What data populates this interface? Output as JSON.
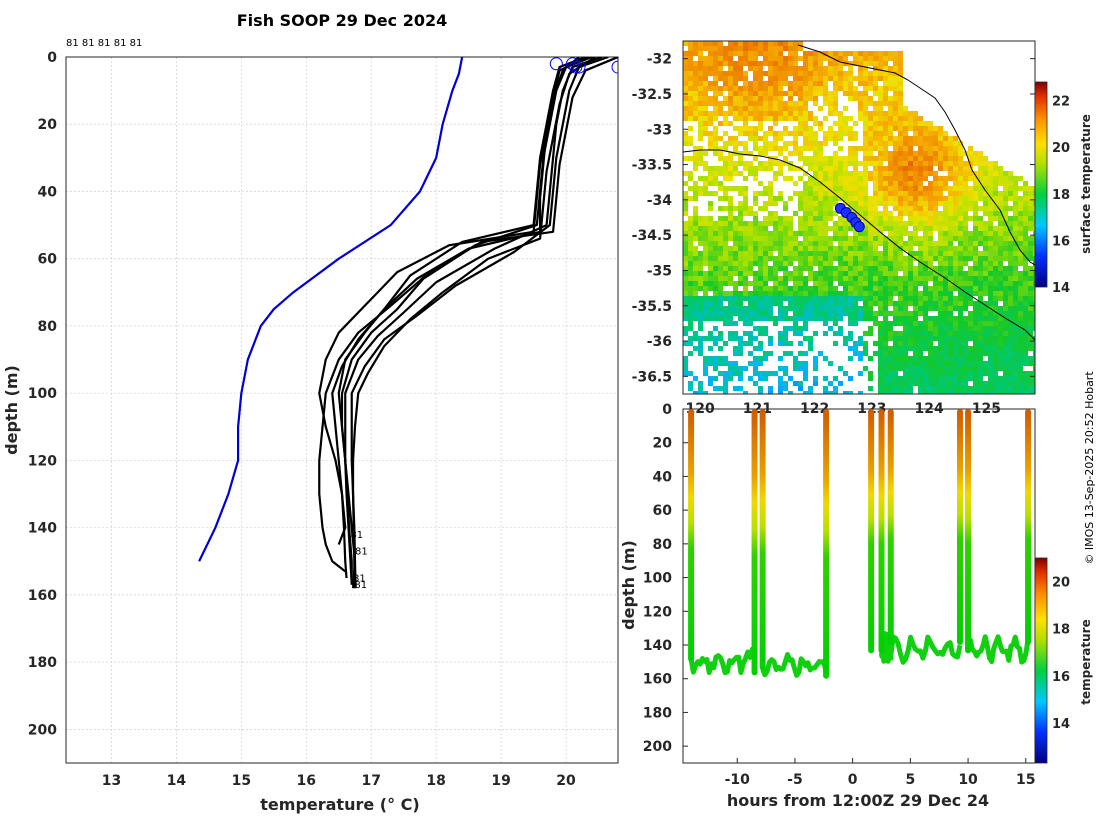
{
  "title": "Fish SOOP 29 Dec 2024",
  "credit": "© IMOS 13-Sep-2025 20:52 Hobart",
  "chart_data": [
    {
      "type": "line",
      "name": "temperature-depth-profiles",
      "xlabel": "temperature (° C)",
      "ylabel": "depth (m)",
      "xlim": [
        12.3,
        20.8
      ],
      "ylim": [
        210,
        0
      ],
      "xticks": [
        13,
        14,
        15,
        16,
        17,
        18,
        19,
        20
      ],
      "yticks": [
        0,
        20,
        40,
        60,
        80,
        100,
        120,
        140,
        160,
        180,
        200
      ],
      "top_labels": "81 81 81 81 81",
      "profile_tag": "81",
      "grid": true,
      "climatology": {
        "name": "climatology",
        "color": "#0000d6",
        "points": [
          [
            18.4,
            0
          ],
          [
            18.35,
            5
          ],
          [
            18.25,
            10
          ],
          [
            18.1,
            20
          ],
          [
            18.0,
            30
          ],
          [
            17.75,
            40
          ],
          [
            17.3,
            50
          ],
          [
            16.5,
            60
          ],
          [
            15.8,
            70
          ],
          [
            15.5,
            75
          ],
          [
            15.3,
            80
          ],
          [
            15.2,
            85
          ],
          [
            15.1,
            90
          ],
          [
            15.0,
            100
          ],
          [
            14.95,
            110
          ],
          [
            14.95,
            120
          ],
          [
            14.8,
            130
          ],
          [
            14.6,
            140
          ],
          [
            14.35,
            150
          ]
        ]
      },
      "profiles": [
        {
          "points": [
            [
              20.3,
              0
            ],
            [
              19.9,
              3
            ],
            [
              19.8,
              10
            ],
            [
              19.7,
              20
            ],
            [
              19.6,
              30
            ],
            [
              19.55,
              40
            ],
            [
              19.5,
              50
            ],
            [
              18.4,
              55
            ],
            [
              17.6,
              65
            ],
            [
              17.2,
              75
            ],
            [
              16.9,
              82
            ],
            [
              16.6,
              90
            ],
            [
              16.5,
              100
            ],
            [
              16.55,
              110
            ],
            [
              16.6,
              120
            ],
            [
              16.65,
              130
            ],
            [
              16.7,
              140
            ],
            [
              16.75,
              150
            ],
            [
              16.72,
              158
            ]
          ]
        },
        {
          "points": [
            [
              20.4,
              0
            ],
            [
              20.0,
              3
            ],
            [
              19.85,
              10
            ],
            [
              19.75,
              20
            ],
            [
              19.65,
              30
            ],
            [
              19.6,
              40
            ],
            [
              19.55,
              50
            ],
            [
              18.6,
              56
            ],
            [
              17.8,
              66
            ],
            [
              17.4,
              75
            ],
            [
              17.0,
              82
            ],
            [
              16.7,
              90
            ],
            [
              16.55,
              100
            ],
            [
              16.55,
              110
            ],
            [
              16.6,
              120
            ],
            [
              16.62,
              130
            ],
            [
              16.65,
              140
            ],
            [
              16.68,
              150
            ],
            [
              16.7,
              157
            ]
          ]
        },
        {
          "points": [
            [
              20.55,
              0
            ],
            [
              20.1,
              3
            ],
            [
              19.95,
              10
            ],
            [
              19.85,
              20
            ],
            [
              19.8,
              30
            ],
            [
              19.75,
              40
            ],
            [
              19.7,
              50
            ],
            [
              18.9,
              57
            ],
            [
              18.0,
              67
            ],
            [
              17.5,
              76
            ],
            [
              17.1,
              83
            ],
            [
              16.8,
              90
            ],
            [
              16.6,
              100
            ],
            [
              16.6,
              110
            ],
            [
              16.6,
              120
            ],
            [
              16.63,
              130
            ],
            [
              16.66,
              140
            ],
            [
              16.7,
              150
            ],
            [
              16.7,
              156
            ]
          ]
        },
        {
          "points": [
            [
              20.65,
              0
            ],
            [
              20.2,
              3
            ],
            [
              20.05,
              10
            ],
            [
              19.95,
              20
            ],
            [
              19.85,
              30
            ],
            [
              19.8,
              40
            ],
            [
              19.75,
              50
            ],
            [
              19.2,
              58
            ],
            [
              18.3,
              68
            ],
            [
              17.7,
              77
            ],
            [
              17.2,
              84
            ],
            [
              16.9,
              92
            ],
            [
              16.7,
              100
            ],
            [
              16.7,
              110
            ],
            [
              16.7,
              120
            ],
            [
              16.72,
              130
            ],
            [
              16.74,
              140
            ],
            [
              16.75,
              150
            ],
            [
              16.76,
              158
            ]
          ]
        },
        {
          "points": [
            [
              20.2,
              0
            ],
            [
              19.95,
              4
            ],
            [
              19.8,
              12
            ],
            [
              19.7,
              22
            ],
            [
              19.6,
              32
            ],
            [
              19.55,
              42
            ],
            [
              19.5,
              52
            ],
            [
              18.2,
              56
            ],
            [
              17.4,
              64
            ],
            [
              16.9,
              74
            ],
            [
              16.5,
              82
            ],
            [
              16.3,
              90
            ],
            [
              16.2,
              100
            ],
            [
              16.3,
              110
            ],
            [
              16.45,
              120
            ],
            [
              16.55,
              130
            ],
            [
              16.6,
              140
            ],
            [
              16.5,
              145
            ]
          ]
        },
        {
          "points": [
            [
              20.8,
              0
            ],
            [
              20.3,
              4
            ],
            [
              20.1,
              12
            ],
            [
              20.0,
              22
            ],
            [
              19.9,
              32
            ],
            [
              19.85,
              42
            ],
            [
              19.8,
              52
            ],
            [
              18.7,
              55
            ],
            [
              17.9,
              64
            ],
            [
              17.3,
              74
            ],
            [
              16.8,
              82
            ],
            [
              16.5,
              90
            ],
            [
              16.3,
              100
            ],
            [
              16.25,
              110
            ],
            [
              16.2,
              120
            ],
            [
              16.2,
              130
            ],
            [
              16.25,
              140
            ],
            [
              16.3,
              145
            ],
            [
              16.4,
              150
            ],
            [
              16.6,
              153
            ]
          ]
        },
        {
          "points": [
            [
              20.45,
              0
            ],
            [
              20.05,
              5
            ],
            [
              19.9,
              14
            ],
            [
              19.8,
              24
            ],
            [
              19.7,
              34
            ],
            [
              19.65,
              44
            ],
            [
              19.6,
              54
            ],
            [
              18.8,
              60
            ],
            [
              18.1,
              70
            ],
            [
              17.6,
              78
            ],
            [
              17.2,
              86
            ],
            [
              16.95,
              94
            ],
            [
              16.8,
              100
            ],
            [
              16.75,
              110
            ],
            [
              16.72,
              120
            ],
            [
              16.72,
              130
            ],
            [
              16.73,
              140
            ],
            [
              16.74,
              150
            ],
            [
              16.74,
              158
            ]
          ]
        },
        {
          "points": [
            [
              20.35,
              0
            ],
            [
              19.9,
              4
            ],
            [
              19.8,
              12
            ],
            [
              19.7,
              22
            ],
            [
              19.65,
              32
            ],
            [
              19.6,
              42
            ],
            [
              19.6,
              52
            ],
            [
              18.5,
              57
            ],
            [
              17.7,
              66
            ],
            [
              17.2,
              75
            ],
            [
              16.8,
              84
            ],
            [
              16.55,
              92
            ],
            [
              16.4,
              100
            ],
            [
              16.45,
              110
            ],
            [
              16.5,
              120
            ],
            [
              16.55,
              130
            ],
            [
              16.58,
              140
            ],
            [
              16.6,
              150
            ],
            [
              16.62,
              155
            ]
          ]
        }
      ],
      "surface_markers": [
        [
          19.85,
          2
        ],
        [
          20.1,
          2
        ],
        [
          20.15,
          3
        ],
        [
          20.2,
          3
        ],
        [
          20.8,
          3
        ]
      ]
    },
    {
      "type": "heatmap",
      "name": "surface-temperature-map",
      "xticks": [
        120,
        121,
        122,
        123,
        124,
        125
      ],
      "yticks": [
        -32,
        -32.5,
        -33,
        -33.5,
        -34,
        -34.5,
        -35,
        -35.5,
        -36,
        -36.5
      ],
      "xlim": [
        119.7,
        125.85
      ],
      "ylim": [
        -36.75,
        -31.75
      ],
      "colorbar_label": "surface temperature",
      "colorbar_ticks": [
        14,
        16,
        18,
        20,
        22
      ],
      "colorbar_range": [
        14,
        22.8
      ],
      "ship_track": [
        [
          122.45,
          -34.12
        ],
        [
          122.55,
          -34.18
        ],
        [
          122.65,
          -34.25
        ],
        [
          122.72,
          -34.32
        ],
        [
          122.78,
          -34.38
        ]
      ]
    },
    {
      "type": "scatter",
      "name": "depth-time-section",
      "xlabel": "hours from 12:00Z 29 Dec 24",
      "ylabel": "depth (m)",
      "xticks": [
        -10,
        -5,
        0,
        5,
        10,
        15
      ],
      "yticks": [
        0,
        20,
        40,
        60,
        80,
        100,
        120,
        140,
        160,
        180,
        200
      ],
      "xlim": [
        -14.7,
        15.8
      ],
      "ylim": [
        210,
        0
      ],
      "colorbar_label": "temperature",
      "colorbar_ticks": [
        14,
        16,
        18,
        20
      ],
      "colorbar_range": [
        12.3,
        21
      ],
      "casts": [
        -14,
        -8.5,
        -7.8,
        -2.3,
        1.6,
        2.5,
        3.3,
        9.3,
        10.0,
        15.2
      ],
      "cast_bottoms": [
        150,
        158,
        155,
        160,
        145,
        145,
        140,
        140,
        145,
        140
      ],
      "segments": [
        [
          -14,
          -8.5
        ],
        [
          -7.8,
          -2.3
        ],
        [
          2.5,
          3.3
        ],
        [
          3.3,
          9.3
        ],
        [
          10.0,
          15.2
        ]
      ]
    }
  ]
}
